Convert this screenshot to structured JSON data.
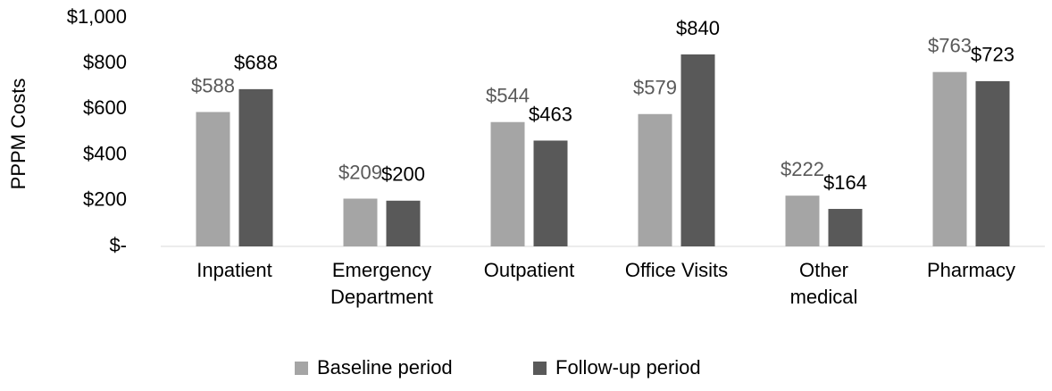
{
  "chart_data": {
    "type": "bar",
    "y_label": "PPPM Costs",
    "categories": [
      "Inpatient",
      "Emergency Department",
      "Outpatient",
      "Office Visits",
      "Other medical",
      "Pharmacy"
    ],
    "series": [
      {
        "name": "Baseline period",
        "color": "#a5a5a5",
        "label_color": "#595959",
        "values": [
          588,
          209,
          544,
          579,
          222,
          763
        ],
        "value_labels": [
          "$588",
          "$209",
          "$544",
          "$579",
          "$222",
          "$763"
        ]
      },
      {
        "name": "Follow-up period",
        "color": "#595959",
        "label_color": "#000000",
        "values": [
          688,
          200,
          463,
          840,
          164,
          723
        ],
        "value_labels": [
          "$688",
          "$200",
          "$463",
          "$840",
          "$164",
          "$723"
        ]
      }
    ],
    "ylim": [
      0,
      1000
    ],
    "yticks": [
      {
        "value": 0,
        "label": "$-"
      },
      {
        "value": 200,
        "label": "$200"
      },
      {
        "value": 400,
        "label": "$400"
      },
      {
        "value": 600,
        "label": "$600"
      },
      {
        "value": 800,
        "label": "$800"
      },
      {
        "value": 1000,
        "label": "$1,000"
      }
    ],
    "grid": false,
    "legend": "bottom"
  }
}
